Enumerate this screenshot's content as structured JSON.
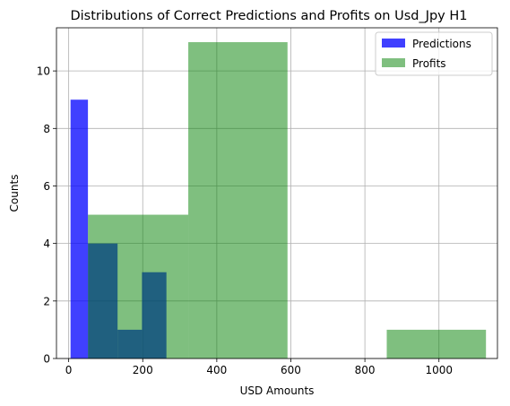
{
  "chart_data": {
    "type": "bar",
    "title": "Distributions of Correct Predictions and Profits on Usd_Jpy H1",
    "xlabel": "USD Amounts",
    "ylabel": "Counts",
    "xlim": [
      -33,
      1158
    ],
    "ylim": [
      0,
      11.5
    ],
    "xticks": [
      0,
      200,
      400,
      600,
      800,
      1000
    ],
    "yticks": [
      0,
      2,
      4,
      6,
      8,
      10
    ],
    "grid": true,
    "legend_position": "top-right",
    "series": [
      {
        "name": "Predictions",
        "color": "#0000ff",
        "opacity": 0.75,
        "bins": [
          {
            "x0": 5,
            "x1": 52,
            "count": 9
          },
          {
            "x0": 52,
            "x1": 132,
            "count": 4
          },
          {
            "x0": 132,
            "x1": 198,
            "count": 1
          },
          {
            "x0": 198,
            "x1": 264,
            "count": 3
          }
        ]
      },
      {
        "name": "Profits",
        "color": "#008000",
        "opacity": 0.5,
        "bins": [
          {
            "x0": 52,
            "x1": 323,
            "count": 5
          },
          {
            "x0": 323,
            "x1": 591,
            "count": 11
          },
          {
            "x0": 591,
            "x1": 859,
            "count": 0
          },
          {
            "x0": 859,
            "x1": 1127,
            "count": 1
          }
        ]
      }
    ]
  }
}
